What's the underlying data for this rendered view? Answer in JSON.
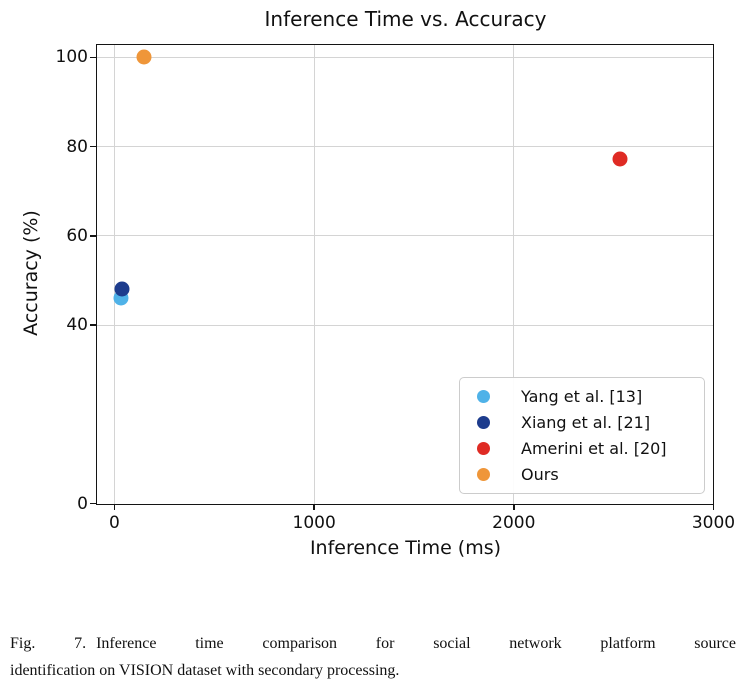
{
  "chart_data": {
    "type": "scatter",
    "title": "Inference Time vs. Accuracy",
    "xlabel": "Inference Time (ms)",
    "ylabel": "Accuracy (%)",
    "xlim": [
      -90,
      3000
    ],
    "ylim": [
      0,
      102.8
    ],
    "xticks": [
      0,
      1000,
      2000,
      3000
    ],
    "yticks": [
      0,
      40,
      60,
      80,
      100
    ],
    "grid": true,
    "legend_position": "lower right",
    "series": [
      {
        "name": "Yang et al. [13]",
        "color": "#4fb2e8",
        "x": 33,
        "y": 46.1
      },
      {
        "name": "Xiang et al. [21]",
        "color": "#1d3c8d",
        "x": 37,
        "y": 48.2
      },
      {
        "name": "Amerini et al. [20]",
        "color": "#df2b24",
        "x": 2530,
        "y": 77.2
      },
      {
        "name": "Ours",
        "color": "#ef9639",
        "x": 149,
        "y": 100
      }
    ]
  },
  "caption": {
    "label": "Fig. 7.",
    "line1": "Inference time comparison for social network platform source",
    "line2": "identification on VISION dataset with secondary processing."
  }
}
